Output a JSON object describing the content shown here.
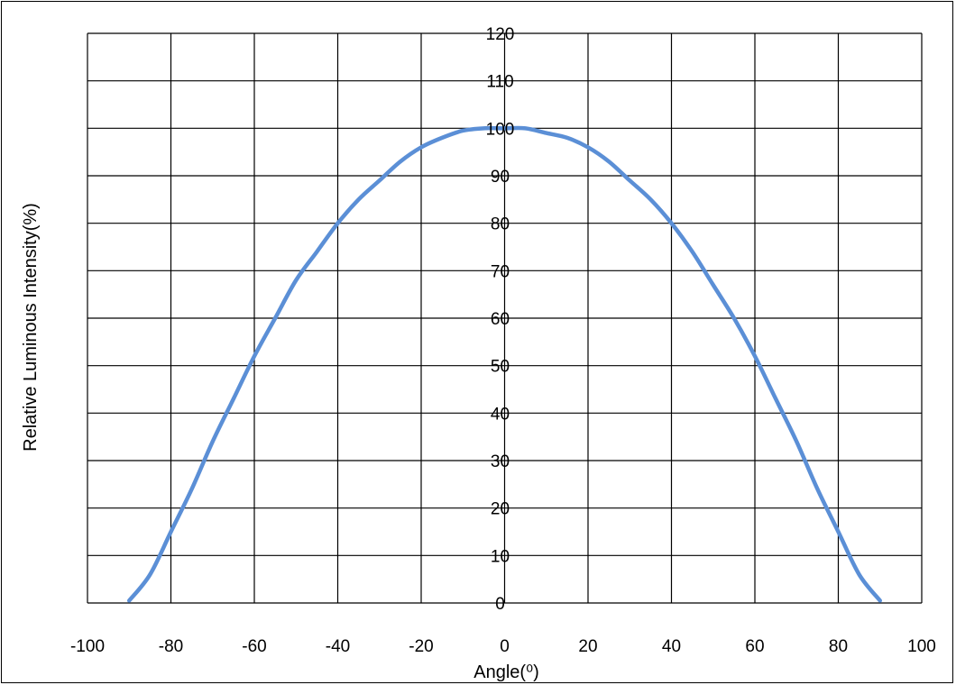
{
  "chart_data": {
    "type": "line",
    "title": "",
    "xlabel": "Angle(⁰)",
    "ylabel": "Relative Luminous Intensity(%)",
    "xlim": [
      -100,
      100
    ],
    "ylim": [
      0,
      120
    ],
    "x_ticks": [
      -100,
      -80,
      -60,
      -40,
      -20,
      0,
      20,
      40,
      60,
      80,
      100
    ],
    "y_ticks": [
      0,
      10,
      20,
      30,
      40,
      50,
      60,
      70,
      80,
      90,
      100,
      110,
      120
    ],
    "grid": true,
    "legend": "none",
    "series": [
      {
        "color": "#5b8fd6",
        "x": [
          -90,
          -85,
          -80,
          -75,
          -70,
          -65,
          -60,
          -55,
          -50,
          -45,
          -40,
          -35,
          -30,
          -25,
          -20,
          -15,
          -10,
          -5,
          0,
          5,
          10,
          15,
          20,
          25,
          30,
          35,
          40,
          45,
          50,
          55,
          60,
          65,
          70,
          75,
          80,
          85,
          90
        ],
        "y": [
          0.5,
          6,
          15,
          24,
          34,
          43,
          52,
          60,
          68,
          74,
          80,
          85,
          89,
          93,
          96,
          98,
          99.5,
          100,
          100,
          100,
          99,
          98,
          96,
          93,
          89,
          85,
          80,
          74,
          67,
          60,
          52,
          43,
          34,
          24,
          15,
          6,
          0.5
        ]
      }
    ]
  }
}
